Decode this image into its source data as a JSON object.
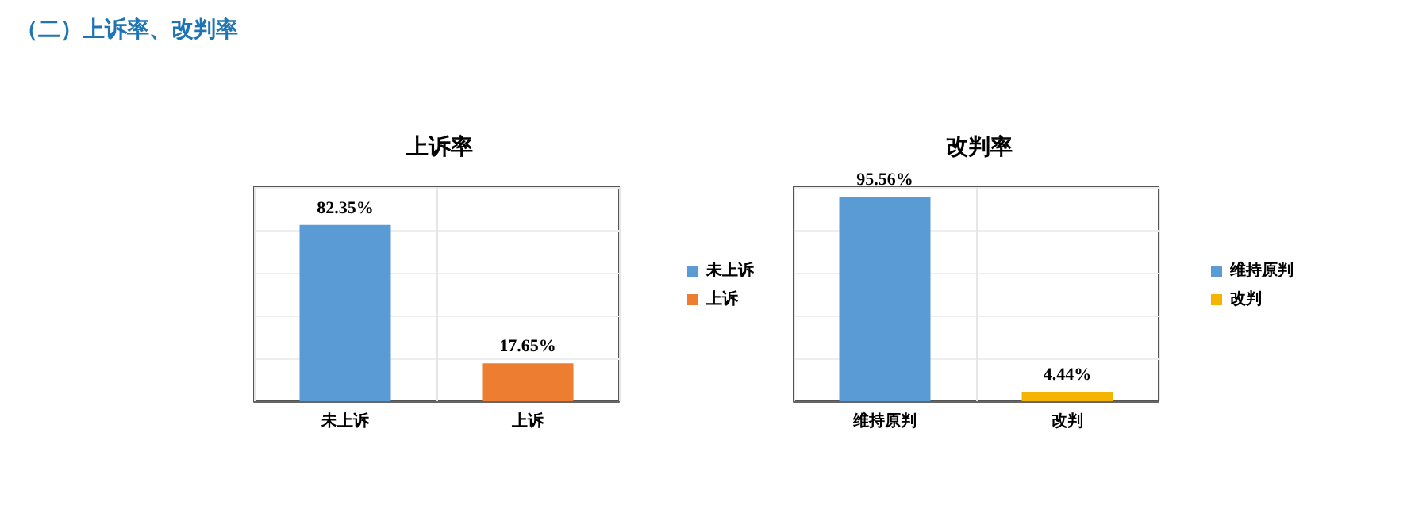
{
  "chart_data": [
    {
      "type": "bar",
      "title": "上诉率",
      "annotations": [
        "（二）上诉率、改判率"
      ],
      "categories": [
        "未上诉",
        "上诉"
      ],
      "series": [
        {
          "name": "未上诉",
          "color": "#5b9bd5",
          "values": [
            82.35,
            null
          ],
          "value_labels": [
            "82.35%",
            null
          ]
        },
        {
          "name": "上诉",
          "color": "#ed7d31",
          "values": [
            null,
            17.65
          ],
          "value_labels": [
            null,
            "17.65%"
          ]
        }
      ],
      "grid": true,
      "legend": "right"
    },
    {
      "type": "bar",
      "title": "改判率",
      "categories": [
        "维持原判",
        "改判"
      ],
      "series": [
        {
          "name": "维持原判",
          "color": "#5b9bd5",
          "values": [
            95.56,
            null
          ],
          "value_labels": [
            "95.56%",
            null
          ]
        },
        {
          "name": "改判",
          "color": "#f5b400",
          "values": [
            null,
            4.44
          ],
          "value_labels": [
            null,
            "4.44%"
          ]
        }
      ],
      "grid": true,
      "legend": "right"
    }
  ]
}
